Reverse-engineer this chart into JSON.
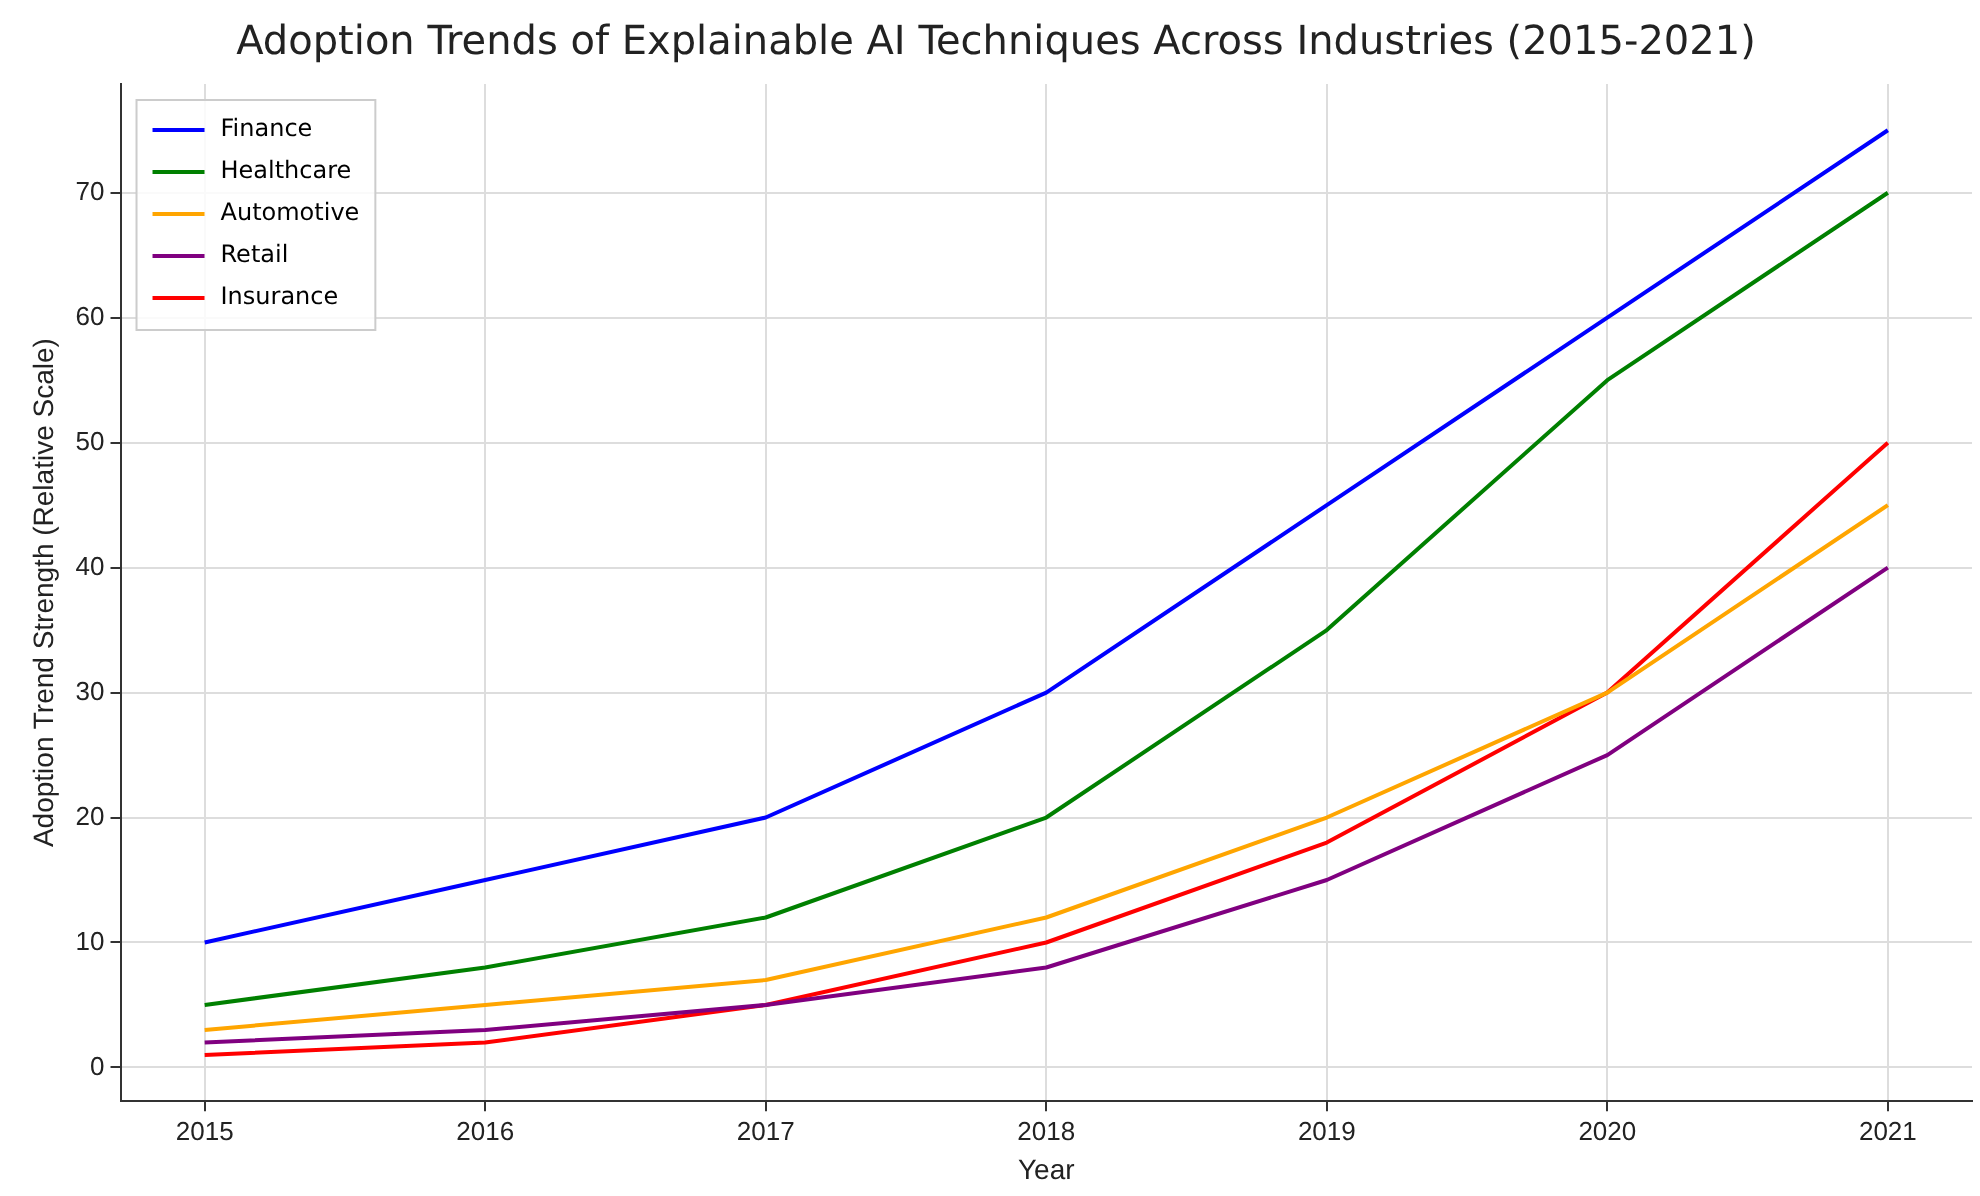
{
  "chart_data": {
    "type": "line",
    "title": "Adoption Trends of Explainable AI Techniques Across Industries (2015-2021)",
    "xlabel": "Year",
    "ylabel": "Adoption Trend Strength (Relative Scale)",
    "x": [
      2015,
      2016,
      2017,
      2018,
      2019,
      2020,
      2021
    ],
    "series": [
      {
        "name": "Finance",
        "color": "#0000ff",
        "values": [
          10,
          15,
          20,
          30,
          45,
          60,
          75
        ]
      },
      {
        "name": "Healthcare",
        "color": "#008000",
        "values": [
          5,
          8,
          12,
          20,
          35,
          55,
          70
        ]
      },
      {
        "name": "Automotive",
        "color": "#ffa500",
        "values": [
          3,
          5,
          7,
          12,
          20,
          30,
          45
        ]
      },
      {
        "name": "Retail",
        "color": "#800080",
        "values": [
          2,
          3,
          5,
          8,
          15,
          25,
          40
        ]
      },
      {
        "name": "Insurance",
        "color": "#ff0000",
        "values": [
          1,
          2,
          5,
          10,
          18,
          30,
          50
        ]
      }
    ],
    "xlim": [
      2014.7,
      2021.3
    ],
    "xticks": [
      2015,
      2016,
      2017,
      2018,
      2019,
      2020,
      2021
    ],
    "ylim": [
      -2.7,
      78.7
    ],
    "yticks": [
      0,
      10,
      20,
      30,
      40,
      50,
      60,
      70
    ],
    "grid": true,
    "legend": "top left",
    "marker": "none",
    "line_style": "solid"
  }
}
